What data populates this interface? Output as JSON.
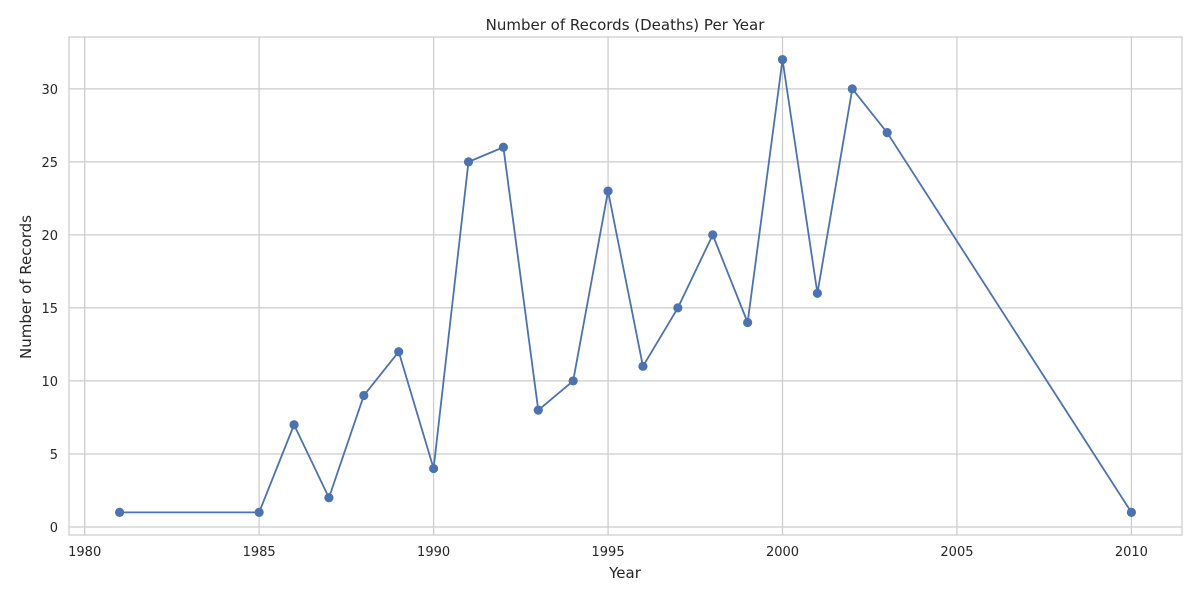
{
  "chart_data": {
    "type": "line",
    "title": "Number of Records (Deaths) Per Year",
    "xlabel": "Year",
    "ylabel": "Number of Records",
    "x": [
      1981,
      1985,
      1986,
      1987,
      1988,
      1989,
      1990,
      1991,
      1992,
      1993,
      1994,
      1995,
      1996,
      1997,
      1998,
      1999,
      2000,
      2001,
      2002,
      2003,
      2010
    ],
    "series": [
      {
        "values": [
          1,
          1,
          7,
          2,
          9,
          12,
          4,
          25,
          26,
          8,
          10,
          23,
          11,
          15,
          20,
          14,
          32,
          16,
          30,
          27,
          1
        ]
      }
    ],
    "xlim": [
      1979.55,
      2011.45
    ],
    "ylim": [
      -0.55,
      33.55
    ],
    "xticks": [
      1980,
      1985,
      1990,
      1995,
      2000,
      2005,
      2010
    ],
    "yticks": [
      0,
      5,
      10,
      15,
      20,
      25,
      30
    ],
    "grid": true,
    "legend": "none",
    "colors": {
      "line": "#4c72b0",
      "grid": "#cccccc",
      "axes_edge": "#cccccc",
      "text": "#262626"
    },
    "marker": "circle"
  }
}
